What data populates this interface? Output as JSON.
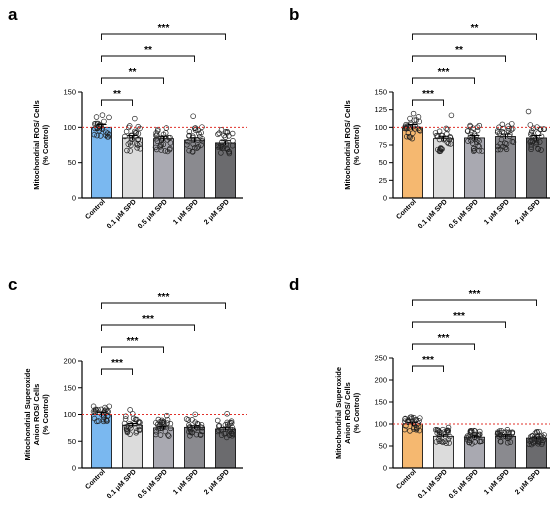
{
  "chart_data": [
    {
      "panel": "a",
      "type": "bar",
      "ylabel_lines": [
        "Mitochondrial ROS/ Cells",
        "(% Control)"
      ],
      "categories": [
        "Control",
        "0.1 μM SPD",
        "0.5 μM SPD",
        "1 μM SPD",
        "2 μM SPD"
      ],
      "values": [
        100,
        85,
        84,
        82,
        78
      ],
      "ylim": [
        0,
        150
      ],
      "yticks": [
        "0",
        "50",
        "100",
        "150"
      ],
      "reference_line": 100,
      "bar_colors": [
        "#7ab8f0",
        "#dcdcdc",
        "#a9a9b1",
        "#8a8a8f",
        "#6b6b6e"
      ],
      "significance": [
        {
          "to": 1,
          "label": "**"
        },
        {
          "to": 2,
          "label": "**"
        },
        {
          "to": 3,
          "label": "**"
        },
        {
          "to": 4,
          "label": "***"
        }
      ]
    },
    {
      "panel": "b",
      "type": "bar",
      "ylabel_lines": [
        "Mitochondrial ROS/ Cells",
        "(% Control)"
      ],
      "categories": [
        "Control",
        "0.1 μM SPD",
        "0.5 μM SPD",
        "1 μM SPD",
        "2 μM SPD"
      ],
      "values": [
        100,
        84,
        85,
        87,
        85
      ],
      "ylim": [
        0,
        150
      ],
      "yticks": [
        "0",
        "25",
        "50",
        "75",
        "100",
        "125",
        "150"
      ],
      "reference_line": 100,
      "bar_colors": [
        "#f5b870",
        "#dcdcdc",
        "#a9a9b1",
        "#8a8a8f",
        "#6b6b6e"
      ],
      "significance": [
        {
          "to": 1,
          "label": "***"
        },
        {
          "to": 2,
          "label": "***"
        },
        {
          "to": 3,
          "label": "**"
        },
        {
          "to": 4,
          "label": "**"
        }
      ]
    },
    {
      "panel": "c",
      "type": "bar",
      "ylabel_lines": [
        "Mitochondrial Superoxide",
        "Anion ROS/ Cells",
        "(% Control)"
      ],
      "categories": [
        "Control",
        "0.1 μM SPD",
        "0.5 μM SPD",
        "1 μM SPD",
        "2 μM SPD"
      ],
      "values": [
        100,
        80,
        75,
        76,
        73
      ],
      "ylim": [
        0,
        200
      ],
      "yticks": [
        "0",
        "50",
        "100",
        "150",
        "200"
      ],
      "reference_line": 100,
      "bar_colors": [
        "#7ab8f0",
        "#dcdcdc",
        "#a9a9b1",
        "#8a8a8f",
        "#6b6b6e"
      ],
      "significance": [
        {
          "to": 1,
          "label": "***"
        },
        {
          "to": 2,
          "label": "***"
        },
        {
          "to": 3,
          "label": "***"
        },
        {
          "to": 4,
          "label": "***"
        }
      ]
    },
    {
      "panel": "d",
      "type": "bar",
      "ylabel_lines": [
        "Mitochondrial Superoxide",
        "Anion ROS/ Cells",
        "(% Control)"
      ],
      "categories": [
        "Control",
        "0.1 μM SPD",
        "0.5 μM SPD",
        "1 μM SPD",
        "2 μM SPD"
      ],
      "values": [
        100,
        72,
        70,
        72,
        68
      ],
      "ylim": [
        0,
        250
      ],
      "yticks": [
        "0",
        "50",
        "100",
        "150",
        "200",
        "250"
      ],
      "reference_line": 100,
      "bar_colors": [
        "#f5b870",
        "#dcdcdc",
        "#a9a9b1",
        "#8a8a8f",
        "#6b6b6e"
      ],
      "significance": [
        {
          "to": 1,
          "label": "***"
        },
        {
          "to": 2,
          "label": "***"
        },
        {
          "to": 3,
          "label": "***"
        },
        {
          "to": 4,
          "label": "***"
        }
      ]
    }
  ]
}
